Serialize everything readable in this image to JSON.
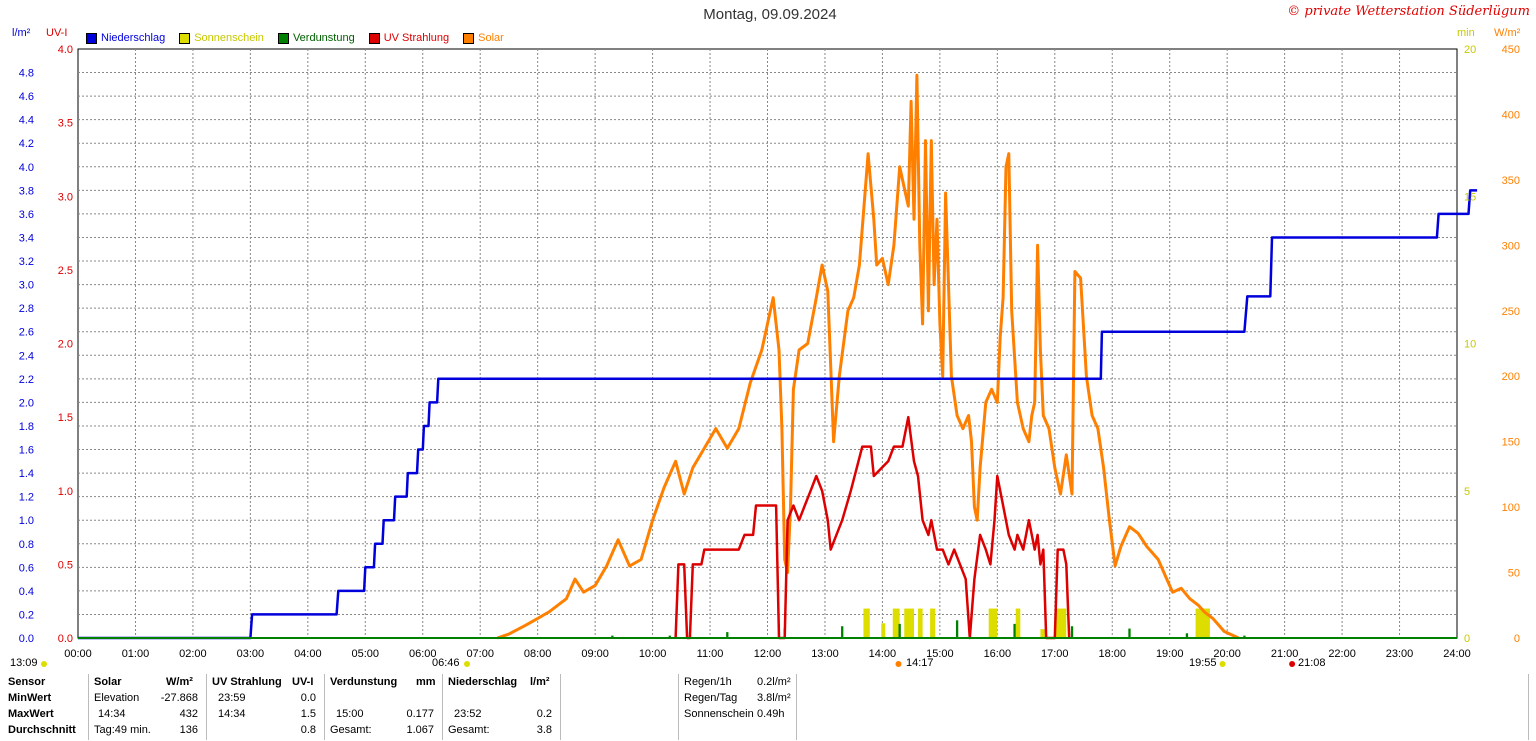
{
  "header": {
    "title": "Montag, 09.09.2024",
    "brand": "© private Wetterstation Süderlügum"
  },
  "units": {
    "left_outer": "l/m²",
    "left_inner": "UV-I",
    "right_inner": "min",
    "right_outer": "W/m²"
  },
  "legend": [
    {
      "label": "Niederschlag",
      "color": "#0000dd",
      "text_color": "#0000dd"
    },
    {
      "label": "Sonnenschein",
      "color": "#dddd00",
      "text_color": "#c8c800"
    },
    {
      "label": "Verdunstung",
      "color": "#008000",
      "text_color": "#006000"
    },
    {
      "label": "UV Strahlung",
      "color": "#dd0000",
      "text_color": "#dd0000"
    },
    {
      "label": "Solar",
      "color": "#ff8000",
      "text_color": "#ff8000"
    }
  ],
  "time_markers": {
    "left_time": "13:09",
    "sunrise": "06:46",
    "solar_max": "14:17",
    "sunset": "19:55",
    "uv_end": "21:08"
  },
  "chart_data": {
    "type": "line",
    "title": "Montag, 09.09.2024",
    "x_ticks": [
      "00:00",
      "01:00",
      "02:00",
      "03:00",
      "04:00",
      "05:00",
      "06:00",
      "07:00",
      "08:00",
      "09:00",
      "10:00",
      "11:00",
      "12:00",
      "13:00",
      "14:00",
      "15:00",
      "16:00",
      "17:00",
      "18:00",
      "19:00",
      "20:00",
      "21:00",
      "22:00",
      "23:00",
      "24:00"
    ],
    "xlim": [
      0,
      24
    ],
    "axes": {
      "rain": {
        "unit": "l/m²",
        "ylim": [
          0,
          5
        ],
        "ticks": [
          "0.0",
          "0.2",
          "0.4",
          "0.6",
          "0.8",
          "1.0",
          "1.2",
          "1.4",
          "1.6",
          "1.8",
          "2.0",
          "2.2",
          "2.4",
          "2.6",
          "2.8",
          "3.0",
          "3.2",
          "3.4",
          "3.6",
          "3.8",
          "4.0",
          "4.2",
          "4.4",
          "4.6",
          "4.8"
        ]
      },
      "uv": {
        "unit": "UV-I",
        "ylim": [
          0,
          4
        ],
        "ticks": [
          "0.0",
          "0.5",
          "1.0",
          "1.5",
          "2.0",
          "2.5",
          "3.0",
          "3.5",
          "4.0"
        ]
      },
      "sunshine": {
        "unit": "min",
        "ylim": [
          0,
          20
        ],
        "ticks": [
          "0",
          "5",
          "10",
          "15",
          "20"
        ]
      },
      "solar": {
        "unit": "W/m²",
        "ylim": [
          0,
          450
        ],
        "ticks": [
          "0",
          "50",
          "100",
          "150",
          "200",
          "250",
          "300",
          "350",
          "400",
          "450"
        ]
      }
    },
    "series": [
      {
        "name": "Niederschlag",
        "axis": "rain",
        "color": "#0000dd",
        "step": true,
        "points": [
          [
            0,
            0
          ],
          [
            3.0,
            0
          ],
          [
            3.03,
            0.2
          ],
          [
            4.5,
            0.2
          ],
          [
            4.53,
            0.4
          ],
          [
            4.98,
            0.4
          ],
          [
            5.0,
            0.6
          ],
          [
            5.15,
            0.6
          ],
          [
            5.17,
            0.8
          ],
          [
            5.3,
            0.8
          ],
          [
            5.32,
            1.0
          ],
          [
            5.5,
            1.0
          ],
          [
            5.52,
            1.2
          ],
          [
            5.72,
            1.2
          ],
          [
            5.74,
            1.4
          ],
          [
            5.9,
            1.4
          ],
          [
            5.92,
            1.6
          ],
          [
            6.0,
            1.6
          ],
          [
            6.02,
            1.8
          ],
          [
            6.1,
            1.8
          ],
          [
            6.12,
            2.0
          ],
          [
            6.25,
            2.0
          ],
          [
            6.27,
            2.2
          ],
          [
            17.8,
            2.2
          ],
          [
            17.82,
            2.6
          ],
          [
            20.3,
            2.6
          ],
          [
            20.35,
            2.9
          ],
          [
            20.75,
            2.9
          ],
          [
            20.78,
            3.4
          ],
          [
            23.65,
            3.4
          ],
          [
            23.68,
            3.6
          ],
          [
            24.2,
            3.6
          ],
          [
            24.23,
            3.8
          ],
          [
            24.35,
            3.8
          ]
        ]
      },
      {
        "name": "UV Strahlung",
        "axis": "uv",
        "color": "#dd0000",
        "points": [
          [
            10.4,
            0
          ],
          [
            10.45,
            0.5
          ],
          [
            10.55,
            0.5
          ],
          [
            10.6,
            0
          ],
          [
            10.65,
            0
          ],
          [
            10.7,
            0.5
          ],
          [
            10.85,
            0.5
          ],
          [
            10.9,
            0.6
          ],
          [
            11.5,
            0.6
          ],
          [
            11.6,
            0.7
          ],
          [
            11.75,
            0.7
          ],
          [
            11.8,
            0.9
          ],
          [
            12.15,
            0.9
          ],
          [
            12.2,
            0
          ],
          [
            12.3,
            0
          ],
          [
            12.35,
            0.8
          ],
          [
            12.45,
            0.9
          ],
          [
            12.55,
            0.8
          ],
          [
            12.65,
            0.9
          ],
          [
            12.75,
            1.0
          ],
          [
            12.85,
            1.1
          ],
          [
            12.95,
            1.0
          ],
          [
            13.05,
            0.8
          ],
          [
            13.1,
            0.6
          ],
          [
            13.2,
            0.7
          ],
          [
            13.3,
            0.8
          ],
          [
            13.45,
            1.0
          ],
          [
            13.65,
            1.3
          ],
          [
            13.8,
            1.3
          ],
          [
            13.85,
            1.1
          ],
          [
            14.1,
            1.2
          ],
          [
            14.2,
            1.3
          ],
          [
            14.35,
            1.3
          ],
          [
            14.45,
            1.5
          ],
          [
            14.55,
            1.2
          ],
          [
            14.62,
            1.1
          ],
          [
            14.7,
            0.8
          ],
          [
            14.8,
            0.7
          ],
          [
            14.85,
            0.8
          ],
          [
            14.95,
            0.6
          ],
          [
            15.05,
            0.6
          ],
          [
            15.15,
            0.5
          ],
          [
            15.25,
            0.6
          ],
          [
            15.35,
            0.5
          ],
          [
            15.45,
            0.4
          ],
          [
            15.52,
            0
          ],
          [
            15.6,
            0.4
          ],
          [
            15.7,
            0.7
          ],
          [
            15.8,
            0.6
          ],
          [
            15.88,
            0.5
          ],
          [
            15.95,
            0.8
          ],
          [
            16.0,
            1.1
          ],
          [
            16.1,
            0.9
          ],
          [
            16.2,
            0.7
          ],
          [
            16.3,
            0.6
          ],
          [
            16.35,
            0.7
          ],
          [
            16.45,
            0.6
          ],
          [
            16.55,
            0.8
          ],
          [
            16.65,
            0.6
          ],
          [
            16.7,
            0.7
          ],
          [
            16.75,
            0.5
          ],
          [
            16.8,
            0.6
          ],
          [
            16.85,
            0
          ],
          [
            17.0,
            0
          ],
          [
            17.05,
            0.6
          ],
          [
            17.15,
            0.6
          ],
          [
            17.2,
            0.5
          ],
          [
            17.25,
            0
          ]
        ]
      },
      {
        "name": "Solar",
        "axis": "solar",
        "color": "#ff8000",
        "points": [
          [
            7.3,
            0
          ],
          [
            7.5,
            3
          ],
          [
            7.8,
            10
          ],
          [
            8.0,
            15
          ],
          [
            8.2,
            20
          ],
          [
            8.5,
            30
          ],
          [
            8.65,
            45
          ],
          [
            8.8,
            35
          ],
          [
            9.0,
            40
          ],
          [
            9.2,
            55
          ],
          [
            9.4,
            75
          ],
          [
            9.6,
            55
          ],
          [
            9.8,
            60
          ],
          [
            10.0,
            90
          ],
          [
            10.2,
            115
          ],
          [
            10.4,
            135
          ],
          [
            10.55,
            110
          ],
          [
            10.7,
            130
          ],
          [
            10.9,
            145
          ],
          [
            11.1,
            160
          ],
          [
            11.3,
            145
          ],
          [
            11.5,
            160
          ],
          [
            11.7,
            195
          ],
          [
            11.9,
            220
          ],
          [
            12.1,
            260
          ],
          [
            12.2,
            220
          ],
          [
            12.25,
            160
          ],
          [
            12.3,
            60
          ],
          [
            12.35,
            50
          ],
          [
            12.4,
            100
          ],
          [
            12.45,
            190
          ],
          [
            12.55,
            220
          ],
          [
            12.7,
            225
          ],
          [
            12.85,
            260
          ],
          [
            12.95,
            285
          ],
          [
            13.05,
            265
          ],
          [
            13.15,
            150
          ],
          [
            13.25,
            200
          ],
          [
            13.4,
            250
          ],
          [
            13.5,
            260
          ],
          [
            13.6,
            285
          ],
          [
            13.75,
            370
          ],
          [
            13.85,
            320
          ],
          [
            13.9,
            285
          ],
          [
            14.0,
            290
          ],
          [
            14.1,
            270
          ],
          [
            14.2,
            300
          ],
          [
            14.25,
            330
          ],
          [
            14.3,
            360
          ],
          [
            14.4,
            340
          ],
          [
            14.45,
            330
          ],
          [
            14.5,
            410
          ],
          [
            14.55,
            320
          ],
          [
            14.6,
            430
          ],
          [
            14.65,
            300
          ],
          [
            14.7,
            240
          ],
          [
            14.75,
            380
          ],
          [
            14.8,
            250
          ],
          [
            14.85,
            380
          ],
          [
            14.9,
            270
          ],
          [
            14.95,
            320
          ],
          [
            15.0,
            240
          ],
          [
            15.05,
            200
          ],
          [
            15.1,
            340
          ],
          [
            15.2,
            200
          ],
          [
            15.3,
            170
          ],
          [
            15.4,
            160
          ],
          [
            15.5,
            170
          ],
          [
            15.55,
            150
          ],
          [
            15.6,
            100
          ],
          [
            15.65,
            90
          ],
          [
            15.7,
            130
          ],
          [
            15.8,
            180
          ],
          [
            15.9,
            190
          ],
          [
            16.0,
            180
          ],
          [
            16.05,
            230
          ],
          [
            16.1,
            260
          ],
          [
            16.15,
            360
          ],
          [
            16.2,
            370
          ],
          [
            16.25,
            250
          ],
          [
            16.35,
            180
          ],
          [
            16.45,
            160
          ],
          [
            16.55,
            150
          ],
          [
            16.6,
            170
          ],
          [
            16.65,
            180
          ],
          [
            16.7,
            300
          ],
          [
            16.75,
            220
          ],
          [
            16.8,
            170
          ],
          [
            16.9,
            160
          ],
          [
            17.0,
            130
          ],
          [
            17.1,
            110
          ],
          [
            17.2,
            140
          ],
          [
            17.3,
            110
          ],
          [
            17.35,
            280
          ],
          [
            17.45,
            275
          ],
          [
            17.55,
            200
          ],
          [
            17.65,
            170
          ],
          [
            17.75,
            160
          ],
          [
            17.85,
            130
          ],
          [
            17.95,
            90
          ],
          [
            18.05,
            55
          ],
          [
            18.15,
            70
          ],
          [
            18.3,
            85
          ],
          [
            18.45,
            80
          ],
          [
            18.6,
            70
          ],
          [
            18.8,
            60
          ],
          [
            18.95,
            45
          ],
          [
            19.05,
            35
          ],
          [
            19.2,
            38
          ],
          [
            19.35,
            30
          ],
          [
            19.5,
            25
          ],
          [
            19.6,
            20
          ],
          [
            19.75,
            15
          ],
          [
            19.85,
            10
          ],
          [
            19.95,
            5
          ],
          [
            20.1,
            2
          ],
          [
            20.2,
            0
          ]
        ]
      },
      {
        "name": "Sonnenschein",
        "axis": "sunshine",
        "color": "#dddd00",
        "type": "bar",
        "bars": [
          [
            13.67,
            13.78,
            1
          ],
          [
            13.98,
            14.05,
            0.5
          ],
          [
            14.18,
            14.3,
            1
          ],
          [
            14.38,
            14.55,
            1
          ],
          [
            14.62,
            14.7,
            1
          ],
          [
            14.83,
            14.92,
            1
          ],
          [
            15.85,
            16.0,
            1
          ],
          [
            16.32,
            16.4,
            1
          ],
          [
            16.75,
            16.85,
            0.3
          ],
          [
            17.0,
            17.2,
            1
          ],
          [
            19.45,
            19.7,
            1
          ]
        ]
      },
      {
        "name": "Verdunstung",
        "axis": "rain",
        "color": "#008000",
        "type": "bar",
        "bars": [
          [
            9.28,
            9.32,
            0.02
          ],
          [
            10.28,
            10.32,
            0.02
          ],
          [
            11.28,
            11.32,
            0.05
          ],
          [
            12.28,
            12.32,
            0.08
          ],
          [
            13.28,
            13.32,
            0.1
          ],
          [
            14.28,
            14.32,
            0.12
          ],
          [
            15.28,
            15.32,
            0.15
          ],
          [
            16.28,
            16.32,
            0.12
          ],
          [
            17.28,
            17.32,
            0.1
          ],
          [
            18.28,
            18.32,
            0.08
          ],
          [
            19.28,
            19.32,
            0.04
          ],
          [
            20.28,
            20.32,
            0.02
          ]
        ]
      }
    ]
  },
  "summary": {
    "headers": {
      "sensor": "Sensor",
      "solar": "Solar",
      "solar_unit": "W/m²",
      "uv": "UV Strahlung",
      "uv_unit": "UV-I",
      "evap": "Verdunstung",
      "evap_unit": "mm",
      "rain": "Niederschlag",
      "rain_unit": "l/m²"
    },
    "rows": [
      {
        "label": "MinWert",
        "solar_time": "Elevation",
        "solar_val": "-27.868",
        "uv_time": "23:59",
        "uv_val": "0.0",
        "evap_time": "",
        "evap_val": "",
        "rain_time": "",
        "rain_val": ""
      },
      {
        "label": "MaxWert",
        "solar_time": "14:34",
        "solar_val": "432",
        "uv_time": "14:34",
        "uv_val": "1.5",
        "evap_time": "15:00",
        "evap_val": "0.177",
        "rain_time": "23:52",
        "rain_val": "0.2"
      },
      {
        "label": "Durchschnitt",
        "solar_time": "Tag:49 min.",
        "solar_val": "136",
        "uv_time": "",
        "uv_val": "0.8",
        "evap_time": "Gesamt:",
        "evap_val": "1.067",
        "rain_time": "Gesamt:",
        "rain_val": "3.8"
      }
    ],
    "extra": [
      {
        "label": "Regen/1h",
        "value": "0.2l/m²"
      },
      {
        "label": "Regen/Tag",
        "value": "3.8l/m²"
      },
      {
        "label": "Sonnenschein",
        "value": "0.49h"
      }
    ]
  }
}
